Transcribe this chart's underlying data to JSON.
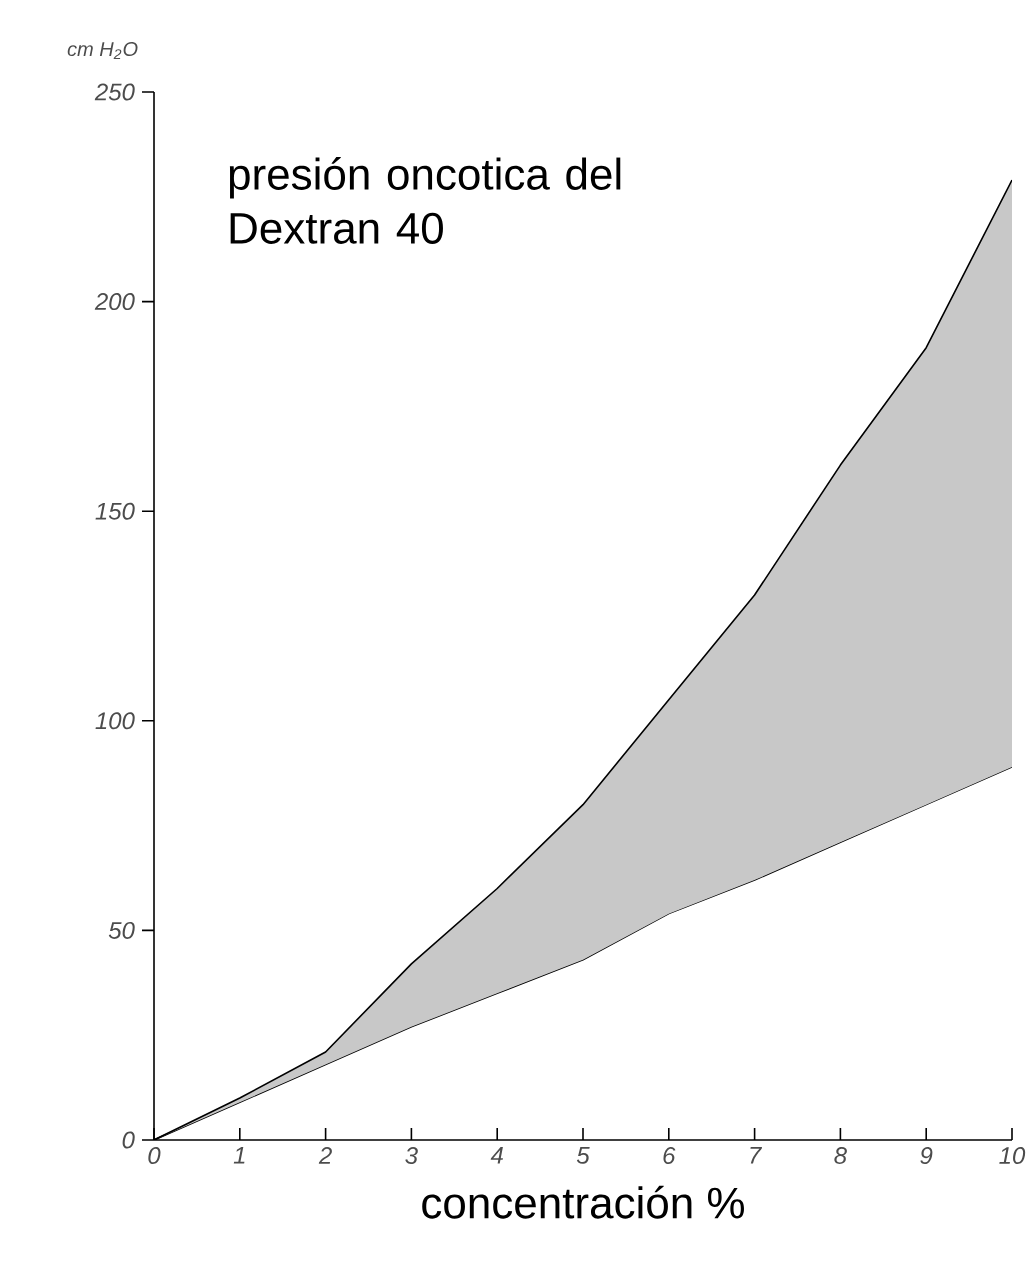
{
  "chart_data": {
    "type": "area",
    "stacked": true,
    "title": "presión oncotica del Dextran 40",
    "xlabel": "concentración %",
    "ylabel": "cm H$_{2}$O",
    "x": [
      0,
      1,
      2,
      3,
      4,
      5,
      6,
      7,
      8,
      9,
      10
    ],
    "series": [
      {
        "color": "#ffffff",
        "values": [
          0,
          9,
          18,
          27,
          35,
          43,
          54,
          62,
          71,
          80,
          89
        ]
      },
      {
        "color": "#c8c8c8",
        "values": [
          0,
          1,
          3,
          15,
          25,
          37,
          51,
          68,
          90,
          109,
          140
        ]
      }
    ],
    "xlim": [
      0,
      10
    ],
    "ylim": [
      0,
      250
    ],
    "xticks": [
      0,
      1,
      2,
      3,
      4,
      5,
      6,
      7,
      8,
      9,
      10
    ],
    "yticks": [
      0,
      50,
      100,
      150,
      200,
      250
    ],
    "grid": false,
    "marker": "none",
    "line_style": "solid"
  }
}
